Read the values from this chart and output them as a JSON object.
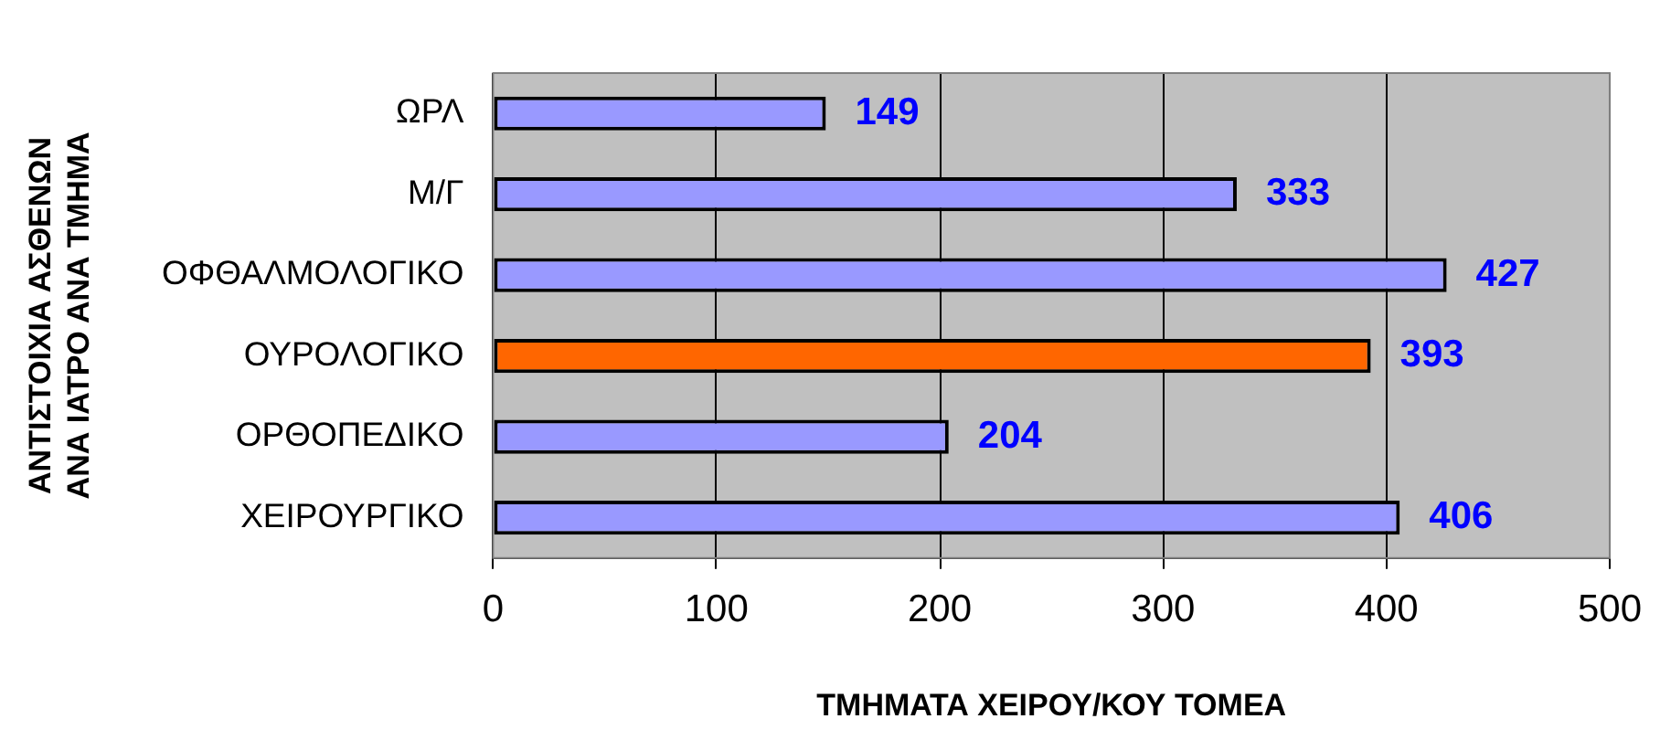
{
  "chart_data": {
    "type": "bar",
    "orientation": "horizontal",
    "categories": [
      "ΩΡΛ",
      "Μ/Γ",
      "ΟΦΘΑΛΜΟΛΟΓΙΚΟ",
      "ΟΥΡΟΛΟΓΙΚΟ",
      "ΟΡΘΟΠΕΔΙΚΟ",
      "ΧΕΙΡΟΥΡΓΙΚΟ"
    ],
    "values": [
      149,
      333,
      427,
      393,
      204,
      406
    ],
    "colors": [
      "#9999ff",
      "#9999ff",
      "#9999ff",
      "#ff6600",
      "#9999ff",
      "#9999ff"
    ],
    "xlim": [
      0,
      500
    ],
    "xticks": [
      0,
      100,
      200,
      300,
      400,
      500
    ],
    "xlabel": "ΤΜΗΜΑΤΑ ΧΕΙΡΟΥ/ΚΟΥ ΤΟΜΕΑ",
    "ylabel": "ΑΝΤΙΣΤΟΙΧΙΑ ΑΣΘΕΝΩΝ\nΑΝΑ ΙΑΤΡΟ ΑΝΑ ΤΜΗΜΑ",
    "grid": "x",
    "data_labels": true
  }
}
